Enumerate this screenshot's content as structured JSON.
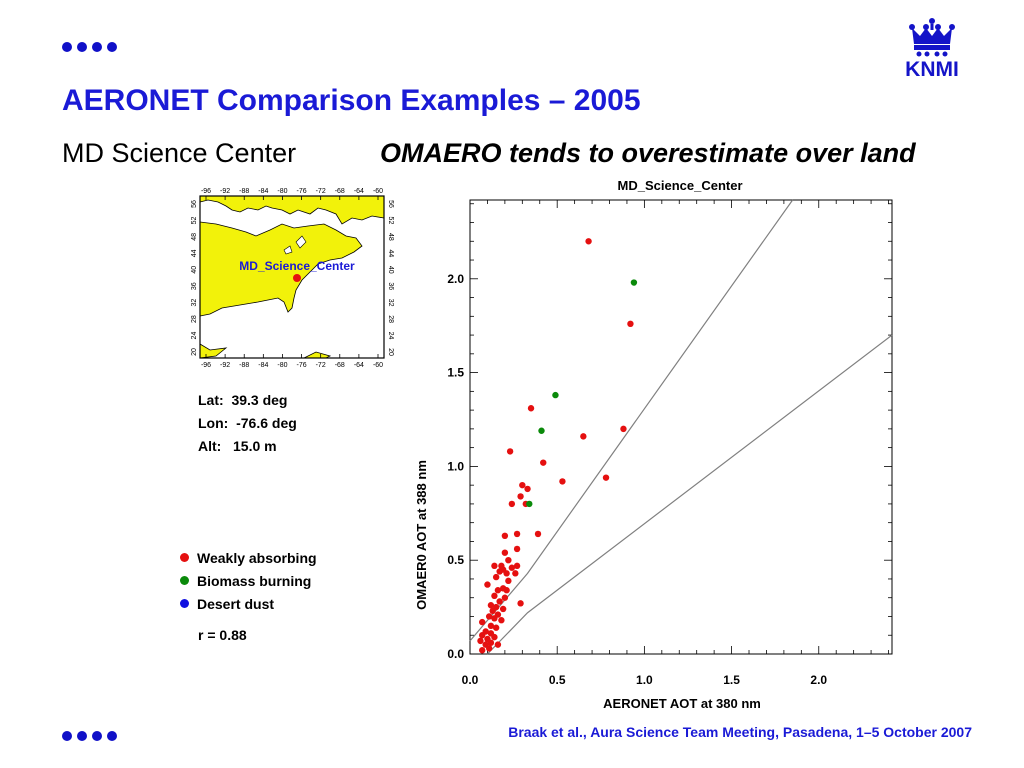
{
  "slide": {
    "title": "AERONET Comparison Examples – 2005",
    "subtitle": "MD Science Center",
    "headline": "OMAERO tends to overestimate over land",
    "footer": "Braak et al., Aura Science Team Meeting, Pasadena, 1–5 October 2007",
    "logo_text": "KNMI"
  },
  "map": {
    "site_label": "MD_Science_Center",
    "lon_ticks": [
      "-96",
      "-92",
      "-88",
      "-84",
      "-80",
      "-76",
      "-72",
      "-68",
      "-64",
      "-60"
    ],
    "lat_ticks": [
      "20",
      "24",
      "28",
      "32",
      "36",
      "40",
      "44",
      "48",
      "52",
      "56"
    ],
    "land_color": "#f2f20a",
    "site_color": "#e51010"
  },
  "site_info": {
    "lat": "Lat:  39.3 deg",
    "lon": "Lon:  -76.6 deg",
    "alt": "Alt:   15.0 m"
  },
  "legend": [
    {
      "label": "Weakly absorbing",
      "color": "#e51010"
    },
    {
      "label": "Biomass burning",
      "color": "#0a8a0a"
    },
    {
      "label": "Desert dust",
      "color": "#1010e0"
    }
  ],
  "correlation": "r = 0.88",
  "chart_data": {
    "type": "scatter",
    "title": "MD_Science_Center",
    "xlabel": "AERONET AOT at 380 nm",
    "ylabel": "OMAER0 AOT at 388 nm",
    "xlim": [
      0.0,
      2.42
    ],
    "ylim": [
      0.0,
      2.42
    ],
    "xticks": [
      0.0,
      0.5,
      1.0,
      1.5,
      2.0
    ],
    "yticks": [
      0.0,
      0.5,
      1.0,
      1.5,
      2.0
    ],
    "xtick_labels": [
      "0.0",
      "0.5",
      "1.0",
      "1.5",
      "2.0"
    ],
    "ytick_labels": [
      "0.0",
      "0.5",
      "1.0",
      "1.5",
      "2.0"
    ],
    "grid": false,
    "lines": [
      {
        "x": [
          0.0,
          0.33,
          1.85
        ],
        "y": [
          0.07,
          0.43,
          2.42
        ]
      },
      {
        "x": [
          0.1,
          0.33,
          2.42
        ],
        "y": [
          0.0,
          0.22,
          1.7
        ]
      }
    ],
    "series": [
      {
        "color": "#e51010",
        "points": [
          [
            0.68,
            2.2
          ],
          [
            0.92,
            1.76
          ],
          [
            0.88,
            1.2
          ],
          [
            0.78,
            0.94
          ],
          [
            0.65,
            1.16
          ],
          [
            0.53,
            0.92
          ],
          [
            0.42,
            1.02
          ],
          [
            0.35,
            1.31
          ],
          [
            0.23,
            1.08
          ],
          [
            0.3,
            0.9
          ],
          [
            0.33,
            0.88
          ],
          [
            0.29,
            0.84
          ],
          [
            0.24,
            0.8
          ],
          [
            0.32,
            0.8
          ],
          [
            0.39,
            0.64
          ],
          [
            0.27,
            0.64
          ],
          [
            0.2,
            0.63
          ],
          [
            0.27,
            0.56
          ],
          [
            0.2,
            0.54
          ],
          [
            0.22,
            0.5
          ],
          [
            0.27,
            0.47
          ],
          [
            0.18,
            0.47
          ],
          [
            0.14,
            0.47
          ],
          [
            0.24,
            0.46
          ],
          [
            0.19,
            0.45
          ],
          [
            0.17,
            0.44
          ],
          [
            0.21,
            0.43
          ],
          [
            0.26,
            0.43
          ],
          [
            0.15,
            0.41
          ],
          [
            0.22,
            0.39
          ],
          [
            0.1,
            0.37
          ],
          [
            0.19,
            0.35
          ],
          [
            0.16,
            0.34
          ],
          [
            0.21,
            0.34
          ],
          [
            0.14,
            0.31
          ],
          [
            0.2,
            0.3
          ],
          [
            0.29,
            0.27
          ],
          [
            0.17,
            0.28
          ],
          [
            0.12,
            0.26
          ],
          [
            0.15,
            0.25
          ],
          [
            0.19,
            0.24
          ],
          [
            0.13,
            0.23
          ],
          [
            0.16,
            0.21
          ],
          [
            0.11,
            0.2
          ],
          [
            0.14,
            0.19
          ],
          [
            0.18,
            0.18
          ],
          [
            0.07,
            0.17
          ],
          [
            0.12,
            0.15
          ],
          [
            0.15,
            0.14
          ],
          [
            0.09,
            0.12
          ],
          [
            0.12,
            0.11
          ],
          [
            0.07,
            0.1
          ],
          [
            0.14,
            0.09
          ],
          [
            0.1,
            0.08
          ],
          [
            0.06,
            0.07
          ],
          [
            0.12,
            0.06
          ],
          [
            0.09,
            0.05
          ],
          [
            0.16,
            0.05
          ],
          [
            0.11,
            0.03
          ],
          [
            0.07,
            0.02
          ]
        ]
      },
      {
        "color": "#0a8a0a",
        "points": [
          [
            0.94,
            1.98
          ],
          [
            0.49,
            1.38
          ],
          [
            0.41,
            1.19
          ],
          [
            0.34,
            0.8
          ]
        ]
      }
    ]
  }
}
